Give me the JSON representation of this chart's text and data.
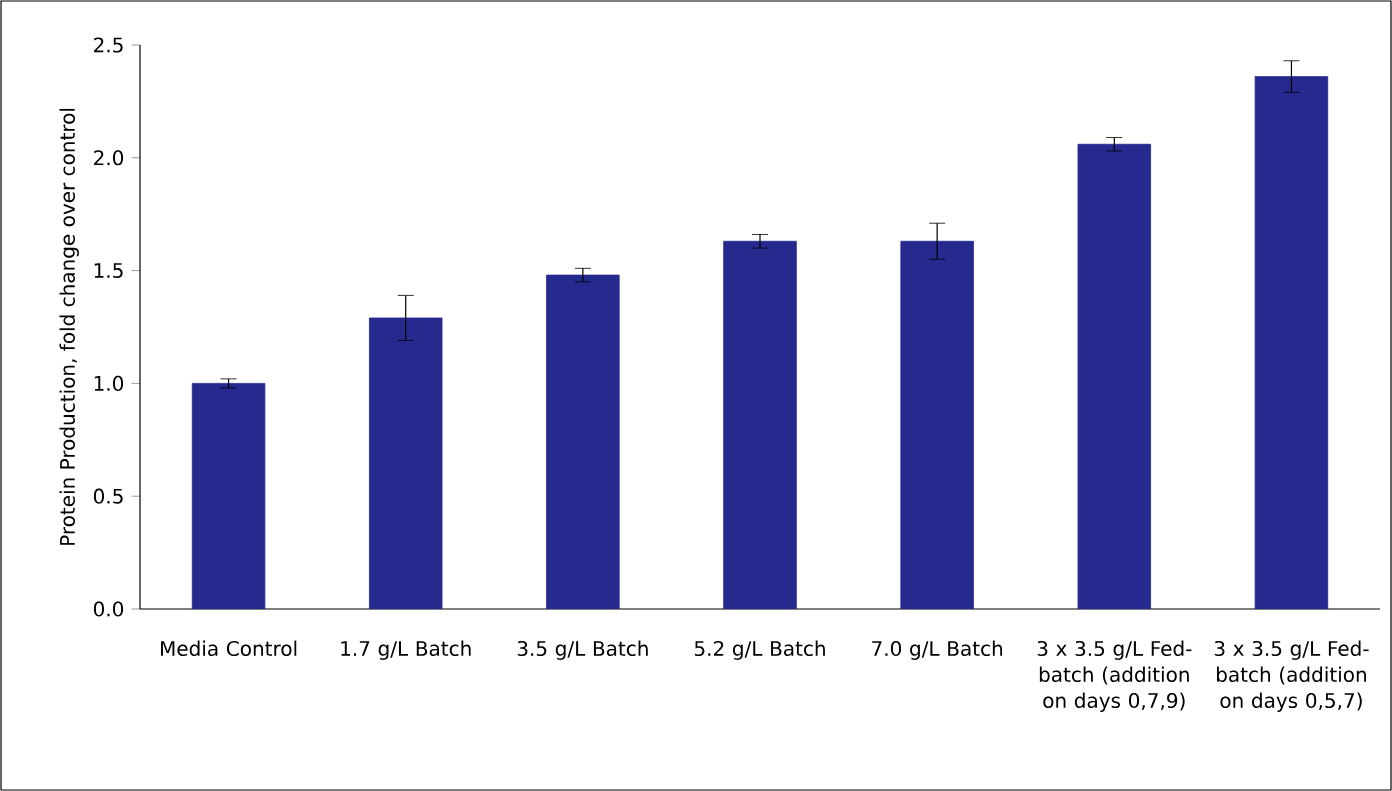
{
  "chart_data": {
    "type": "bar",
    "ylabel": "Protein Production, fold change over control",
    "categories": [
      "Media Control",
      "1.7 g/L Batch",
      "3.5 g/L Batch",
      "5.2 g/L Batch",
      "7.0 g/L Batch",
      "3 x 3.5 g/L Fed-batch (addition on days 0,7,9)",
      "3 x 3.5 g/L Fed-batch (addition on days 0,5,7)"
    ],
    "values": [
      1.0,
      1.29,
      1.48,
      1.63,
      1.63,
      2.06,
      2.36
    ],
    "errors": [
      0.02,
      0.1,
      0.03,
      0.03,
      0.08,
      0.03,
      0.07
    ],
    "color": "#262a8f",
    "ylim": [
      0,
      2.5
    ],
    "yticks": [
      {
        "value": 0,
        "label": "0.0"
      },
      {
        "value": 0.5,
        "label": "0.5"
      },
      {
        "value": 1,
        "label": "1.0"
      },
      {
        "value": 1.5,
        "label": "1.5"
      },
      {
        "value": 2,
        "label": "2.0"
      },
      {
        "value": 2.5,
        "label": "2.5"
      }
    ],
    "grid": false
  }
}
